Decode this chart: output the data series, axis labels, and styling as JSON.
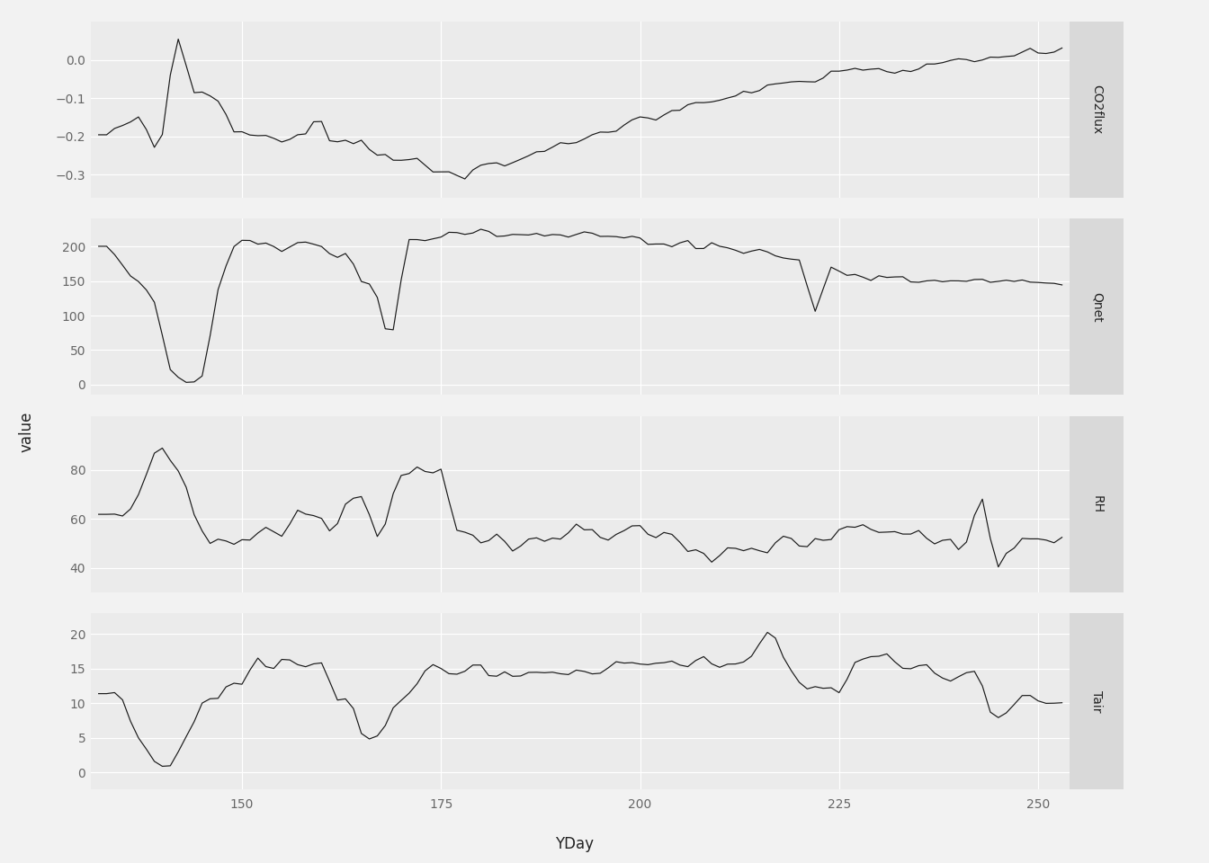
{
  "title": "",
  "xlabel": "YDay",
  "ylabel": "value",
  "panel_bg_color": "#EBEBEB",
  "figure_bg_color": "#F2F2F2",
  "strip_bg_color": "#D9D9D9",
  "panel_names": [
    "CO2flux",
    "Qnet",
    "RH",
    "Tair"
  ],
  "xmin": 131,
  "xmax": 254,
  "xticks": [
    150,
    175,
    200,
    225,
    250
  ],
  "panels": {
    "CO2flux": {
      "ylim": [
        -0.36,
        0.1
      ],
      "yticks": [
        0.0,
        -0.1,
        -0.2,
        -0.3
      ]
    },
    "Qnet": {
      "ylim": [
        -15,
        240
      ],
      "yticks": [
        0,
        50,
        100,
        150,
        200
      ]
    },
    "RH": {
      "ylim": [
        30,
        102
      ],
      "yticks": [
        40,
        60,
        80
      ]
    },
    "Tair": {
      "ylim": [
        -2.5,
        23
      ],
      "yticks": [
        0,
        5,
        10,
        15,
        20
      ]
    }
  },
  "line_color": "#1a1a1a",
  "grid_color": "#ffffff",
  "tick_label_color": "#666666",
  "axis_label_color": "#222222",
  "ylabel_fontsize": 12,
  "xlabel_fontsize": 12,
  "tick_fontsize": 10,
  "strip_fontsize": 10
}
